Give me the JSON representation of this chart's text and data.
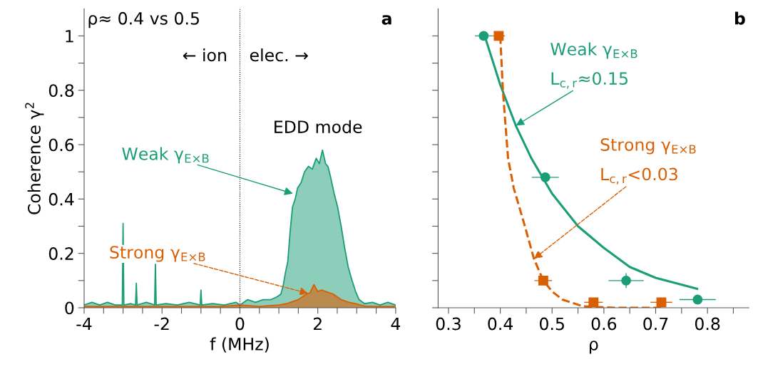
{
  "chart_data": [
    {
      "type": "area",
      "xlabel": "f (MHz)",
      "ylabel": "Coherence γ$^{2}$",
      "xlim": [
        -4,
        4
      ],
      "xticks": [
        -4,
        {
          "value": -3.5,
          "label": null
        },
        {
          "value": -3,
          "label": null
        },
        {
          "value": -2.5,
          "label": null
        },
        -2,
        {
          "value": -1.5,
          "label": null
        },
        {
          "value": -1,
          "label": null
        },
        {
          "value": -0.5,
          "label": null
        },
        0,
        {
          "value": 0.5,
          "label": null
        },
        {
          "value": 1,
          "label": null
        },
        {
          "value": 1.5,
          "label": null
        },
        2,
        {
          "value": 2.5,
          "label": null
        },
        {
          "value": 3,
          "label": null
        },
        {
          "value": 3.5,
          "label": null
        },
        4
      ],
      "ylim": [
        0,
        1.1
      ],
      "yticks": [
        0,
        {
          "value": 0.1,
          "label": null
        },
        0.2,
        {
          "value": 0.3,
          "label": null
        },
        0.4,
        {
          "value": 0.5,
          "label": null
        },
        0.6,
        {
          "value": 0.7,
          "label": null
        },
        0.8,
        {
          "value": 0.9,
          "label": null
        },
        1
      ],
      "grid": false,
      "legend": false,
      "series": [
        {
          "color": "#1b9e77",
          "x": [
            -4,
            -3.8,
            -3.6,
            -3.4,
            -3.2,
            -3.02,
            -3.0,
            -2.98,
            -2.8,
            -2.68,
            -2.66,
            -2.64,
            -2.4,
            -2.19,
            -2.17,
            -2.15,
            -1.9,
            -1.6,
            -1.3,
            -1.02,
            -1.0,
            -0.98,
            -0.7,
            -0.4,
            -0.1,
            0,
            0.2,
            0.4,
            0.6,
            0.8,
            0.95,
            1.05,
            1.11,
            1.17,
            1.23,
            1.29,
            1.35,
            1.42,
            1.48,
            1.57,
            1.66,
            1.76,
            1.86,
            1.96,
            2.04,
            2.12,
            2.2,
            2.26,
            2.33,
            2.42,
            2.51,
            2.6,
            2.69,
            2.78,
            2.88,
            2.97,
            3.06,
            3.2,
            3.4,
            3.6,
            3.8,
            4
          ],
          "values": [
            0.01,
            0.02,
            0.01,
            0.02,
            0.01,
            0.01,
            0.31,
            0.01,
            0.015,
            0.01,
            0.09,
            0.01,
            0.02,
            0.01,
            0.16,
            0.01,
            0.015,
            0.01,
            0.02,
            0.01,
            0.065,
            0.01,
            0.015,
            0.01,
            0.02,
            0.01,
            0.03,
            0.02,
            0.03,
            0.03,
            0.04,
            0.05,
            0.08,
            0.13,
            0.17,
            0.28,
            0.37,
            0.4,
            0.44,
            0.46,
            0.5,
            0.52,
            0.51,
            0.55,
            0.53,
            0.58,
            0.53,
            0.52,
            0.48,
            0.42,
            0.37,
            0.3,
            0.22,
            0.15,
            0.1,
            0.06,
            0.03,
            0.015,
            0.02,
            0.01,
            0.02,
            0.01
          ]
        },
        {
          "color": "#d95f02",
          "x": [
            -4,
            -3,
            -2,
            -1,
            -0.5,
            0,
            0.5,
            0.8,
            1.0,
            1.2,
            1.4,
            1.5,
            1.6,
            1.7,
            1.8,
            1.9,
            2.0,
            2.1,
            2.2,
            2.3,
            2.4,
            2.5,
            2.6,
            2.8,
            3.0,
            3.2,
            3.5,
            4
          ],
          "values": [
            0.005,
            0.005,
            0.005,
            0.005,
            0.005,
            0.01,
            0.005,
            0.008,
            0.01,
            0.015,
            0.025,
            0.03,
            0.04,
            0.05,
            0.055,
            0.085,
            0.06,
            0.065,
            0.06,
            0.055,
            0.05,
            0.04,
            0.03,
            0.02,
            0.014,
            0.006,
            0.005,
            0.005
          ]
        }
      ],
      "ref_lines": [
        {
          "axis": "x",
          "value": 0,
          "color": "#000000",
          "line_style": "dotted"
        }
      ],
      "annotations": [
        "ρ≈ 0.4 vs 0.5",
        "a",
        "← ion",
        "elec. →",
        "EDD mode",
        {
          "text": "Weak γ$_{E×B}$",
          "x": 1.36,
          "y": 0.42
        },
        {
          "text": "Strong γ$_{E×B}$",
          "x": 1.75,
          "y": 0.053
        }
      ]
    },
    {
      "type": "scatter",
      "xlabel": "ρ",
      "xlim": [
        0.28,
        0.88
      ],
      "xticks": [
        0.3,
        {
          "value": 0.35,
          "label": null
        },
        0.4,
        {
          "value": 0.45,
          "label": null
        },
        0.5,
        {
          "value": 0.55,
          "label": null
        },
        0.6,
        {
          "value": 0.65,
          "label": null
        },
        0.7,
        {
          "value": 0.75,
          "label": null
        },
        0.8,
        {
          "value": 0.85,
          "label": null
        }
      ],
      "ylim": [
        0,
        1.1
      ],
      "yticks": [
        {
          "value": 0,
          "label": null
        },
        {
          "value": 0.1,
          "label": null
        },
        {
          "value": 0.2,
          "label": null
        },
        {
          "value": 0.3,
          "label": null
        },
        {
          "value": 0.4,
          "label": null
        },
        {
          "value": 0.5,
          "label": null
        },
        {
          "value": 0.6,
          "label": null
        },
        {
          "value": 0.7,
          "label": null
        },
        {
          "value": 0.8,
          "label": null
        },
        {
          "value": 0.9,
          "label": null
        },
        {
          "value": 1,
          "label": null
        }
      ],
      "tick_labels": "x",
      "grid": false,
      "legend": false,
      "series": [
        {
          "color": "#1b9e77",
          "marker": "circle",
          "x": [
            0.368,
            0.487,
            0.643,
            0.781
          ],
          "values": [
            1.0,
            0.48,
            0.1,
            0.03
          ],
          "xerrors": [
            0.017,
            0.026,
            0.034,
            0.035
          ],
          "errors": [
            null,
            0.012,
            0.027,
            null
          ]
        },
        {
          "color": "#d95f02",
          "marker": "square",
          "x": [
            0.397,
            0.483,
            0.58,
            0.711
          ],
          "values": [
            1.0,
            0.1,
            0.02,
            0.02
          ],
          "xerrors": [
            0.012,
            0.017,
            0.018,
            0.021
          ]
        },
        {
          "type": "line",
          "color": "#1b9e77",
          "line_style": "solid",
          "x": [
            0.37,
            0.4,
            0.43,
            0.46,
            0.5,
            0.55,
            0.6,
            0.65,
            0.7,
            0.78
          ],
          "values": [
            1.0,
            0.82,
            0.67,
            0.55,
            0.42,
            0.3,
            0.22,
            0.15,
            0.11,
            0.07
          ]
        },
        {
          "type": "line",
          "color": "#d95f02",
          "line_style": "dashed",
          "x": [
            0.4,
            0.405,
            0.415,
            0.426,
            0.446,
            0.465,
            0.483,
            0.5,
            0.52,
            0.56,
            0.62,
            0.71
          ],
          "values": [
            1.0,
            0.8,
            0.55,
            0.44,
            0.31,
            0.18,
            0.1,
            0.06,
            0.03,
            0.005,
            0,
            0
          ]
        }
      ],
      "annotations": [
        "b",
        "Weak γ$_{E×B}$",
        "Strong γ$_{E×B}$",
        {
          "text": "L$_{c,r}$≈0.15",
          "x": 0.43,
          "y": 0.67
        },
        {
          "text": "L$_{c,r}$<0.03",
          "x": 0.465,
          "y": 0.18
        }
      ]
    }
  ]
}
